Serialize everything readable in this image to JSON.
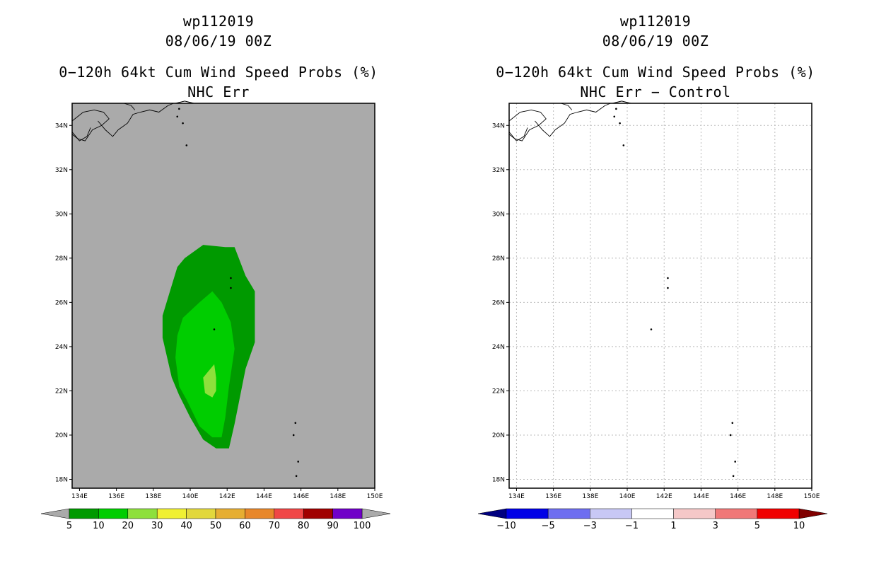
{
  "panels": [
    {
      "id": "left",
      "title1": "wp112019",
      "title2": "08/06/19 00Z",
      "title3": "0−120h 64kt Cum Wind Speed Probs (%)",
      "title4": "NHC Err",
      "background": "#aaaaaa",
      "grid": false,
      "colorbar": {
        "labels": [
          "5",
          "10",
          "20",
          "30",
          "40",
          "50",
          "60",
          "70",
          "80",
          "90",
          "100"
        ],
        "colors": [
          "#009a00",
          "#00cd00",
          "#8ee03c",
          "#f0f032",
          "#e2d83c",
          "#e6ae32",
          "#e8872a",
          "#f04646",
          "#a00000",
          "#7000c8"
        ],
        "end_left": "#aaaaaa",
        "end_right": "#aaaaaa"
      }
    },
    {
      "id": "right",
      "title1": "wp112019",
      "title2": "08/06/19 00Z",
      "title3": "0−120h 64kt Cum Wind Speed Probs (%)",
      "title4": "NHC Err − Control",
      "background": "#ffffff",
      "grid": true,
      "colorbar": {
        "labels": [
          "−10",
          "−5",
          "−3",
          "−1",
          "1",
          "3",
          "5",
          "10"
        ],
        "colors": [
          "#0000e6",
          "#6e6ef0",
          "#c8c8f5",
          "#ffffff",
          "#f5c8c8",
          "#f07878",
          "#f00000"
        ],
        "end_left": "#000080",
        "end_right": "#800000"
      }
    }
  ],
  "chart_data": {
    "type": "heatmap",
    "x_axis": {
      "ticks": [
        "134E",
        "136E",
        "138E",
        "140E",
        "142E",
        "144E",
        "146E",
        "148E",
        "150E"
      ],
      "range_deg_e": [
        133.6,
        150
      ]
    },
    "y_axis": {
      "ticks": [
        "18N",
        "20N",
        "22N",
        "24N",
        "26N",
        "28N",
        "30N",
        "32N",
        "34N"
      ],
      "range_deg_n": [
        17.6,
        35
      ]
    },
    "contours_left": [
      {
        "level_pct": 5,
        "color": "#009a00",
        "polygon": [
          [
            141.9,
            28.5
          ],
          [
            142.4,
            28.5
          ],
          [
            143.0,
            27.2
          ],
          [
            143.5,
            26.5
          ],
          [
            143.5,
            24.2
          ],
          [
            143.0,
            23.0
          ],
          [
            142.4,
            20.5
          ],
          [
            142.1,
            19.4
          ],
          [
            141.4,
            19.4
          ],
          [
            140.7,
            19.8
          ],
          [
            140.0,
            20.8
          ],
          [
            139.4,
            21.8
          ],
          [
            139.0,
            22.6
          ],
          [
            138.5,
            24.4
          ],
          [
            138.5,
            25.4
          ],
          [
            138.9,
            26.5
          ],
          [
            139.3,
            27.6
          ],
          [
            139.7,
            28.0
          ],
          [
            140.7,
            28.6
          ]
        ]
      },
      {
        "level_pct": 10,
        "color": "#00cd00",
        "polygon": [
          [
            141.2,
            26.5
          ],
          [
            141.7,
            26.0
          ],
          [
            142.2,
            25.1
          ],
          [
            142.4,
            23.9
          ],
          [
            142.1,
            22.2
          ],
          [
            141.9,
            20.8
          ],
          [
            141.7,
            19.9
          ],
          [
            141.2,
            19.9
          ],
          [
            140.5,
            20.4
          ],
          [
            139.8,
            21.6
          ],
          [
            139.4,
            22.2
          ],
          [
            139.2,
            23.5
          ],
          [
            139.3,
            24.5
          ],
          [
            139.6,
            25.3
          ],
          [
            140.5,
            26.0
          ]
        ]
      },
      {
        "level_pct": 20,
        "color": "#8ee03c",
        "polygon": [
          [
            141.3,
            23.2
          ],
          [
            141.4,
            22.6
          ],
          [
            141.4,
            22.0
          ],
          [
            141.2,
            21.7
          ],
          [
            140.8,
            21.9
          ],
          [
            140.7,
            22.6
          ],
          [
            141.0,
            22.9
          ]
        ]
      }
    ],
    "right_panel_note": "difference field entirely within -1 to 1 (no shading)"
  }
}
